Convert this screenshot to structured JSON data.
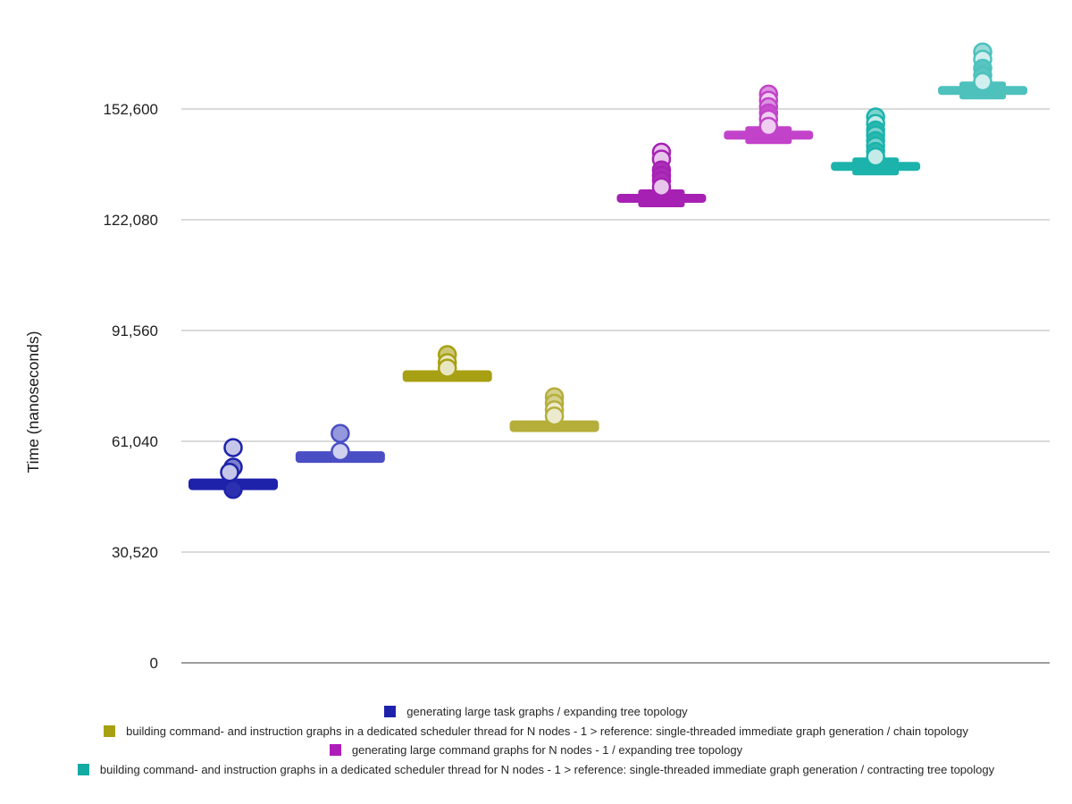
{
  "chart_data": {
    "type": "scatter",
    "title": "",
    "xlabel": "",
    "ylabel": "Time (nanoseconds)",
    "ylim": [
      0,
      172000
    ],
    "yticks": [
      0,
      30520,
      61040,
      91560,
      122080,
      152600
    ],
    "grid": true,
    "legend_position": "bottom",
    "series": [
      {
        "label": "generating large task graphs / expanding tree topology",
        "color": "#1e22aa"
      },
      {
        "label": "building command- and instruction graphs in a dedicated scheduler thread for N nodes - 1 > reference: single-threaded immediate graph generation / chain topology",
        "color": "#a8a013"
      },
      {
        "label": "generating large command graphs for N nodes - 1 / expanding tree topology",
        "color": "#ae1cba"
      },
      {
        "label": "building command- and instruction graphs in a dedicated scheduler thread for N nodes - 1 > reference: single-threaded immediate graph generation / contracting tree topology",
        "color": "#14aaa4"
      }
    ],
    "clusters": [
      {
        "series": 0,
        "color": "#1e22aa",
        "center_value": 49200,
        "box": false,
        "points": [
          {
            "v": 59300,
            "s": "light"
          },
          {
            "v": 53900,
            "s": "mid"
          },
          {
            "v": 52500,
            "s": "light",
            "dx": -4
          },
          {
            "v": 47800,
            "s": "solid"
          }
        ]
      },
      {
        "series": 0,
        "color": "#4a4ec4",
        "center_value": 56700,
        "box": false,
        "points": [
          {
            "v": 63200,
            "s": "mid"
          },
          {
            "v": 58200,
            "s": "light"
          }
        ]
      },
      {
        "series": 1,
        "color": "#a8a013",
        "center_value": 79000,
        "box": false,
        "points": [
          {
            "v": 84900,
            "s": "mid"
          },
          {
            "v": 82700,
            "s": "light"
          },
          {
            "v": 81200,
            "s": "light"
          }
        ]
      },
      {
        "series": 1,
        "color": "#b5ae3a",
        "center_value": 65200,
        "box": false,
        "points": [
          {
            "v": 73300,
            "s": "mid"
          },
          {
            "v": 71500,
            "s": "mid"
          },
          {
            "v": 69700,
            "s": "light"
          },
          {
            "v": 68000,
            "s": "light"
          }
        ]
      },
      {
        "series": 2,
        "color": "#a621b3",
        "center_value": 128000,
        "box": true,
        "points": [
          {
            "v": 140700,
            "s": "light"
          },
          {
            "v": 138800,
            "s": "light"
          },
          {
            "v": 135800,
            "s": "solid"
          },
          {
            "v": 134300,
            "s": "solid"
          },
          {
            "v": 132900,
            "s": "solid"
          },
          {
            "v": 131100,
            "s": "light"
          }
        ]
      },
      {
        "series": 2,
        "color": "#c243ca",
        "center_value": 145400,
        "box": true,
        "points": [
          {
            "v": 156700,
            "s": "mid"
          },
          {
            "v": 155000,
            "s": "light"
          },
          {
            "v": 153200,
            "s": "mid"
          },
          {
            "v": 151500,
            "s": "solid"
          },
          {
            "v": 149800,
            "s": "light"
          },
          {
            "v": 147800,
            "s": "light"
          }
        ]
      },
      {
        "series": 3,
        "color": "#1bb3ab",
        "center_value": 136800,
        "box": true,
        "points": [
          {
            "v": 150400,
            "s": "mid"
          },
          {
            "v": 148600,
            "s": "light"
          },
          {
            "v": 146800,
            "s": "solid"
          },
          {
            "v": 145400,
            "s": "mid"
          },
          {
            "v": 143900,
            "s": "solid"
          },
          {
            "v": 142400,
            "s": "mid"
          },
          {
            "v": 140900,
            "s": "solid"
          },
          {
            "v": 139400,
            "s": "light"
          }
        ]
      },
      {
        "series": 3,
        "color": "#4ec1bd",
        "center_value": 157700,
        "box": true,
        "points": [
          {
            "v": 168300,
            "s": "mid"
          },
          {
            "v": 166300,
            "s": "light"
          },
          {
            "v": 163800,
            "s": "solid"
          },
          {
            "v": 161900,
            "s": "solid"
          },
          {
            "v": 160100,
            "s": "light"
          }
        ]
      }
    ],
    "grid_color": "#b5b5b5",
    "baseline_color": "#9e9e9e",
    "tick_label_color": "#1f1f1f"
  }
}
